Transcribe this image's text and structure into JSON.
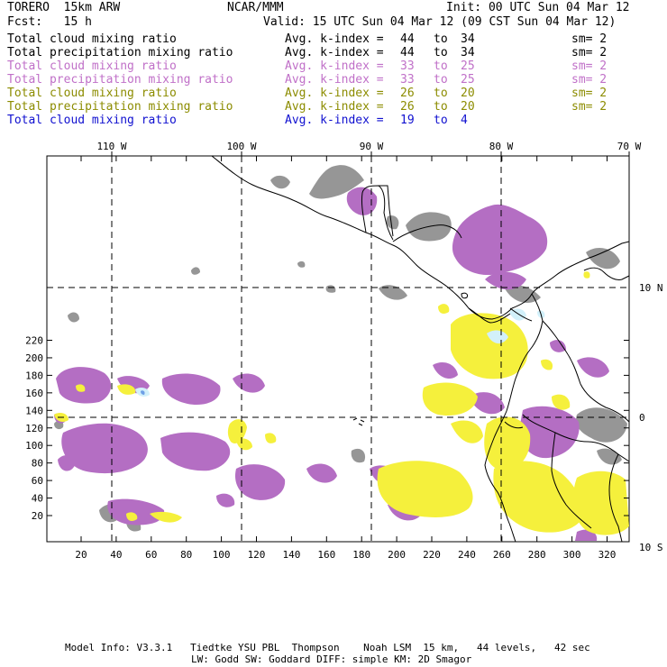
{
  "header": {
    "model": "TORERO  15km ARW",
    "org": "NCAR/MMM",
    "init": "Init: 00 UTC Sun 04 Mar 12",
    "fcst": "Fcst:   15 h",
    "valid": "Valid: 15 UTC Sun 04 Mar 12 (09 CST Sun 04 Mar 12)"
  },
  "legend": [
    {
      "field": "Total cloud mixing ratio",
      "avg": "Avg. k-index =",
      "from": "44",
      "to_word": "to",
      "to": "34",
      "sm": "sm= 2",
      "color": "#000000"
    },
    {
      "field": "Total precipitation mixing ratio",
      "avg": "Avg. k-index =",
      "from": "44",
      "to_word": "to",
      "to": "34",
      "sm": "sm= 2",
      "color": "#000000"
    },
    {
      "field": "Total cloud mixing ratio",
      "avg": "Avg. k-index =",
      "from": "33",
      "to_word": "to",
      "to": "25",
      "sm": "sm= 2",
      "color": "#c070c8"
    },
    {
      "field": "Total precipitation mixing ratio",
      "avg": "Avg. k-index =",
      "from": "33",
      "to_word": "to",
      "to": "25",
      "sm": "sm= 2",
      "color": "#c070c8"
    },
    {
      "field": "Total cloud mixing ratio",
      "avg": "Avg. k-index =",
      "from": "26",
      "to_word": "to",
      "to": "20",
      "sm": "sm= 2",
      "color": "#8c8c00"
    },
    {
      "field": "Total precipitation mixing ratio",
      "avg": "Avg. k-index =",
      "from": "26",
      "to_word": "to",
      "to": "20",
      "sm": "sm= 2",
      "color": "#8c8c00"
    },
    {
      "field": "Total cloud mixing ratio",
      "avg": "Avg. k-index =",
      "from": "19",
      "to_word": "to",
      "to": "4",
      "sm": "",
      "color": "#1010d0"
    }
  ],
  "map": {
    "lon_labels": [
      "110 W",
      "100 W",
      "90 W",
      "80 W",
      "70 W"
    ],
    "lat_labels": [
      "10 N",
      "0",
      "10 S"
    ],
    "y_ticks": [
      "20",
      "40",
      "60",
      "80",
      "100",
      "120",
      "140",
      "160",
      "180",
      "200",
      "220"
    ],
    "x_ticks": [
      "20",
      "40",
      "60",
      "80",
      "100",
      "120",
      "140",
      "160",
      "180",
      "200",
      "220",
      "240",
      "260",
      "280",
      "300",
      "320"
    ],
    "colors": {
      "gray": "#969696",
      "purple": "#b46ec3",
      "yellow": "#f5f03c",
      "cyan": "#d2f0fa",
      "blue": "#6ea0e6"
    }
  },
  "footer": {
    "line1": "Model Info: V3.3.1   Tiedtke YSU PBL  Thompson    Noah LSM  15 km,   44 levels,   42 sec",
    "line2": "LW: Godd SW: Goddard DIFF: simple KM: 2D Smagor"
  }
}
